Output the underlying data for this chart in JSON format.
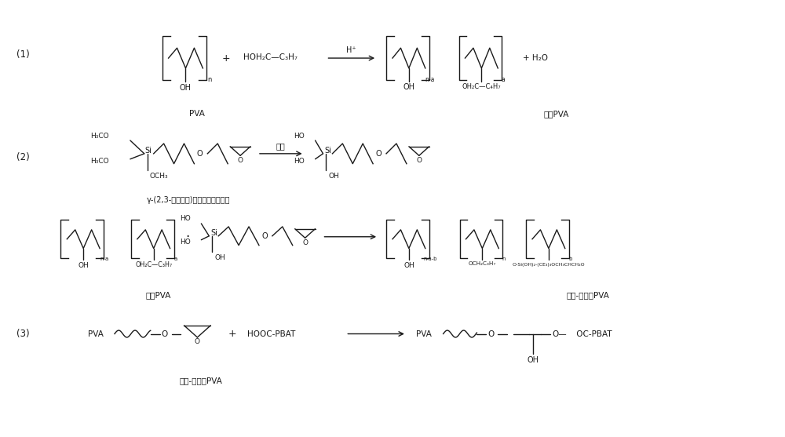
{
  "bg_color": "#ffffff",
  "text_color": "#1a1a1a",
  "fig_width": 10.0,
  "fig_height": 5.57,
  "dpi": 100,
  "reactions": {
    "r1_label": "(1)",
    "r2_label": "(2)",
    "r3_label": "(3)",
    "r1_pva": "PVA",
    "r1_prod": "醚化PVA",
    "r2_silane": "γ-(2,3-环氧丙氧)丙基三甲氧基硅烷",
    "r2_eth_pva": "醚化PVA",
    "r2_prod": "醚化-硅烷化PVA",
    "r3_react": "醚化-硅烷化PVA"
  }
}
